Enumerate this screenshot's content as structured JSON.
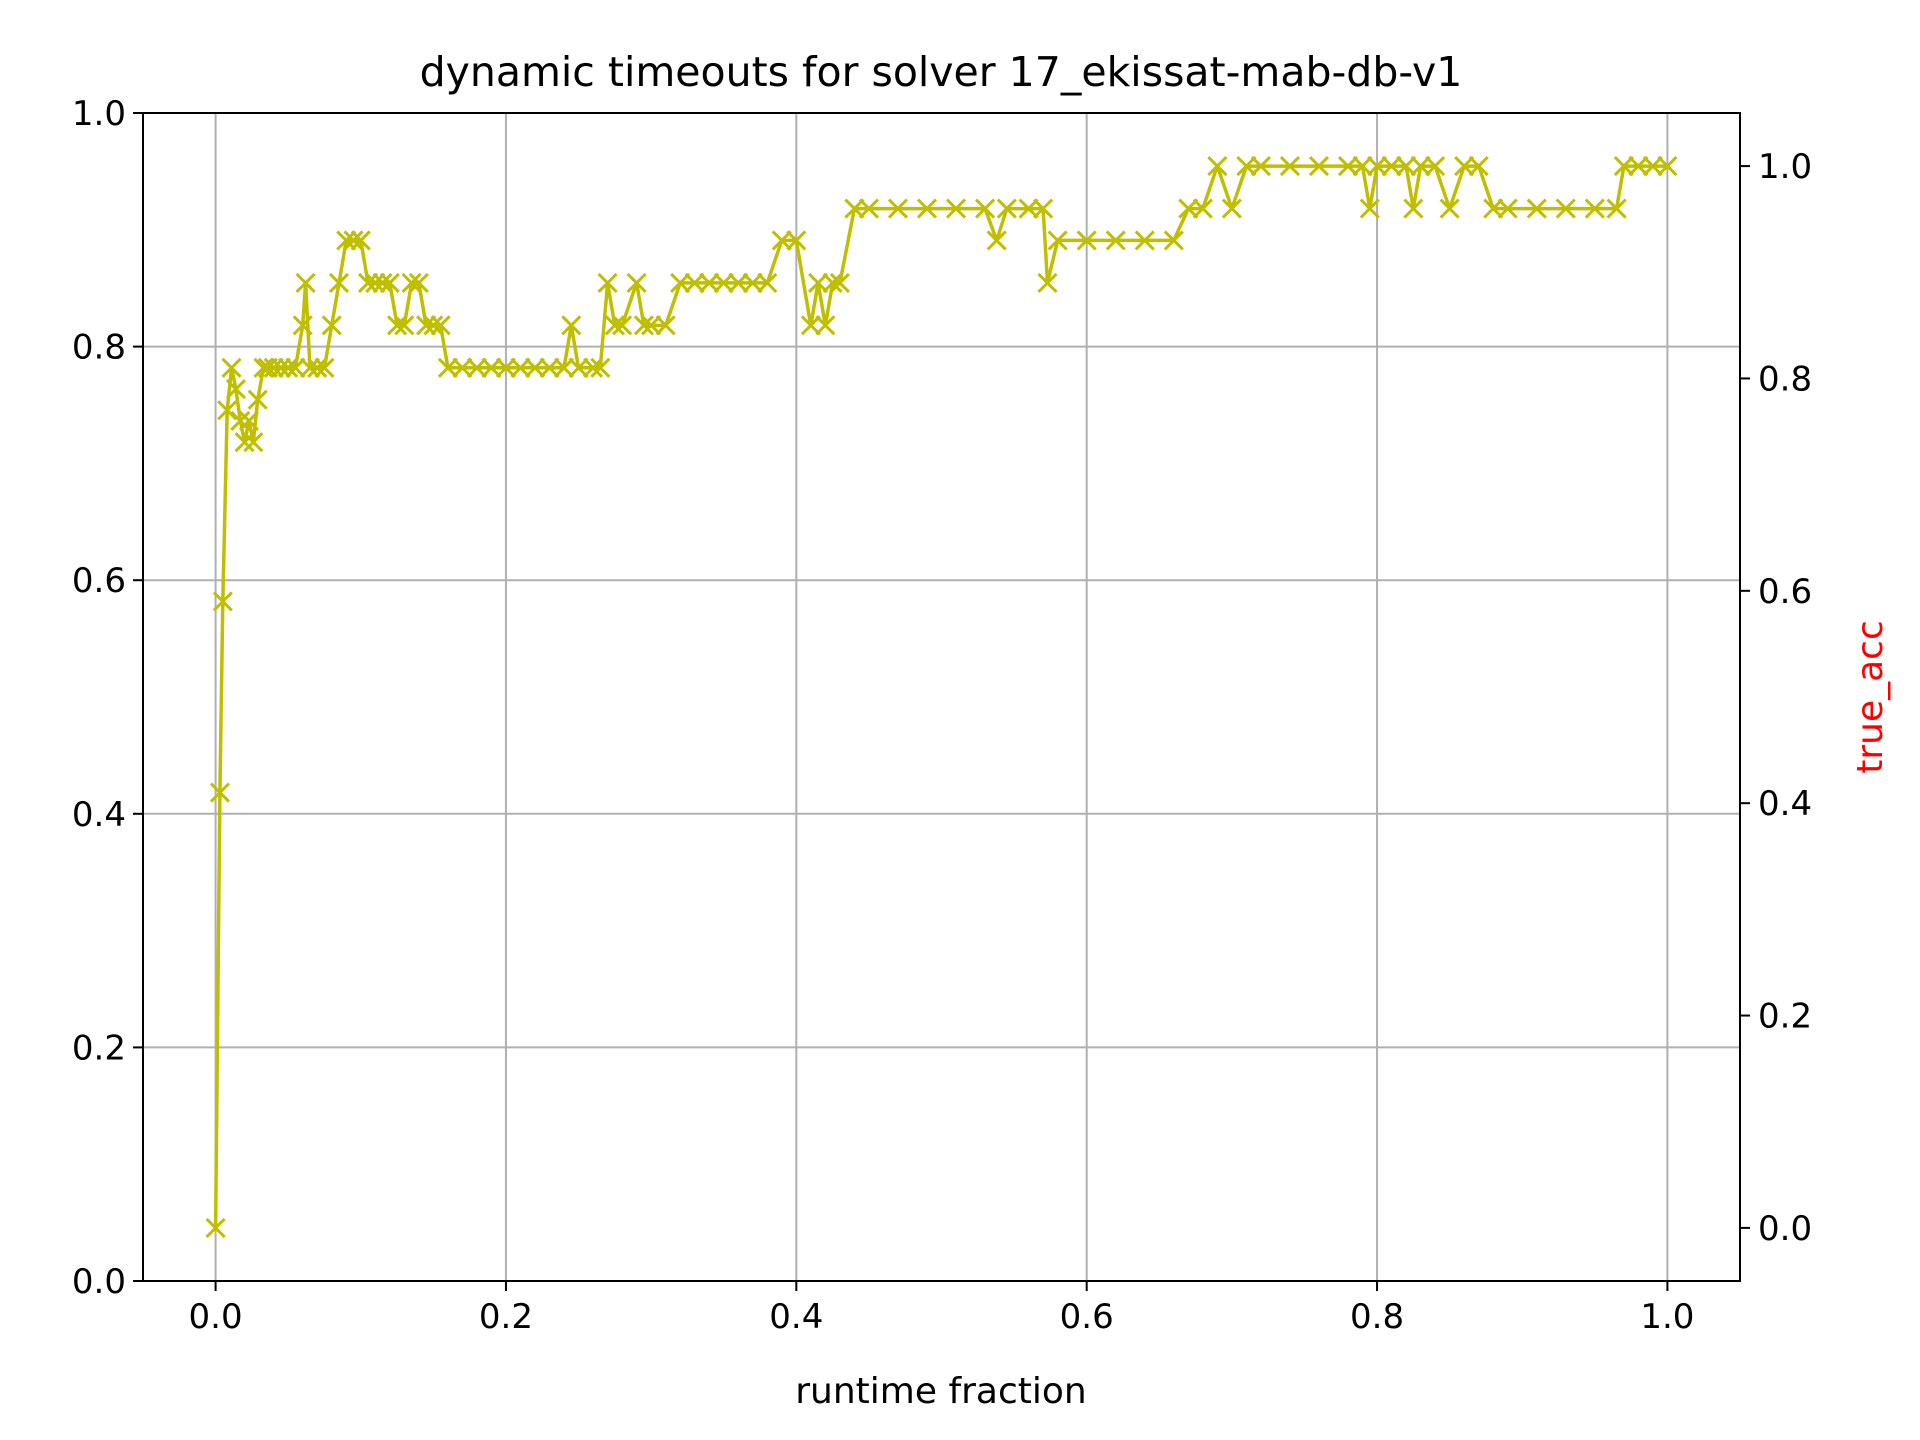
{
  "chart_data": {
    "type": "line",
    "title": "dynamic timeouts for solver 17_ekissat-mab-db-v1",
    "xlabel": "runtime fraction",
    "ylabel": "",
    "ylabel_right": "true_acc",
    "ylabel_right_color": "#ff0000",
    "series_color": "#bfbf00",
    "marker": "x",
    "grid": true,
    "xlim": [
      -0.05,
      1.05
    ],
    "ylim": [
      0.0,
      1.0
    ],
    "ylim_right": [
      -0.05,
      1.05
    ],
    "x_ticks": [
      "0.0",
      "0.2",
      "0.4",
      "0.6",
      "0.8",
      "1.0"
    ],
    "y_ticks": [
      "0.0",
      "0.2",
      "0.4",
      "0.6",
      "0.8",
      "1.0"
    ],
    "y_right_ticks": [
      "0.0",
      "0.2",
      "0.4",
      "0.6",
      "0.8",
      "1.0"
    ],
    "series": [
      {
        "name": "",
        "axis": "right",
        "x": [
          0.0,
          0.003,
          0.005,
          0.008,
          0.011,
          0.014,
          0.017,
          0.02,
          0.023,
          0.026,
          0.029,
          0.033,
          0.036,
          0.04,
          0.045,
          0.05,
          0.055,
          0.06,
          0.062,
          0.065,
          0.07,
          0.075,
          0.08,
          0.085,
          0.09,
          0.095,
          0.1,
          0.105,
          0.11,
          0.115,
          0.12,
          0.125,
          0.13,
          0.135,
          0.14,
          0.145,
          0.15,
          0.155,
          0.16,
          0.17,
          0.18,
          0.19,
          0.2,
          0.21,
          0.22,
          0.23,
          0.24,
          0.245,
          0.25,
          0.26,
          0.265,
          0.27,
          0.275,
          0.28,
          0.29,
          0.295,
          0.3,
          0.31,
          0.32,
          0.33,
          0.34,
          0.35,
          0.36,
          0.37,
          0.38,
          0.39,
          0.4,
          0.41,
          0.415,
          0.42,
          0.425,
          0.43,
          0.44,
          0.45,
          0.47,
          0.49,
          0.51,
          0.53,
          0.538,
          0.545,
          0.56,
          0.57,
          0.573,
          0.58,
          0.6,
          0.62,
          0.64,
          0.66,
          0.67,
          0.68,
          0.69,
          0.7,
          0.71,
          0.72,
          0.74,
          0.76,
          0.78,
          0.79,
          0.795,
          0.8,
          0.81,
          0.82,
          0.825,
          0.83,
          0.84,
          0.85,
          0.86,
          0.87,
          0.88,
          0.89,
          0.91,
          0.93,
          0.95,
          0.965,
          0.97,
          0.98,
          0.99,
          1.0
        ],
        "y": [
          0.0,
          0.41,
          0.59,
          0.77,
          0.81,
          0.79,
          0.76,
          0.74,
          0.76,
          0.74,
          0.78,
          0.81,
          0.81,
          0.81,
          0.81,
          0.81,
          0.81,
          0.85,
          0.89,
          0.81,
          0.81,
          0.81,
          0.85,
          0.89,
          0.93,
          0.93,
          0.93,
          0.89,
          0.89,
          0.89,
          0.89,
          0.85,
          0.85,
          0.89,
          0.89,
          0.85,
          0.85,
          0.85,
          0.81,
          0.81,
          0.81,
          0.81,
          0.81,
          0.81,
          0.81,
          0.81,
          0.81,
          0.85,
          0.81,
          0.81,
          0.81,
          0.89,
          0.85,
          0.85,
          0.89,
          0.85,
          0.85,
          0.85,
          0.89,
          0.89,
          0.89,
          0.89,
          0.89,
          0.89,
          0.89,
          0.93,
          0.93,
          0.85,
          0.89,
          0.85,
          0.89,
          0.89,
          0.96,
          0.96,
          0.96,
          0.96,
          0.96,
          0.96,
          0.93,
          0.96,
          0.96,
          0.96,
          0.89,
          0.93,
          0.93,
          0.93,
          0.93,
          0.93,
          0.96,
          0.96,
          1.0,
          0.96,
          1.0,
          1.0,
          1.0,
          1.0,
          1.0,
          1.0,
          0.96,
          1.0,
          1.0,
          1.0,
          0.96,
          1.0,
          1.0,
          0.96,
          1.0,
          1.0,
          0.96,
          0.96,
          0.96,
          0.96,
          0.96,
          0.96,
          1.0,
          1.0,
          1.0,
          1.0
        ]
      }
    ]
  }
}
